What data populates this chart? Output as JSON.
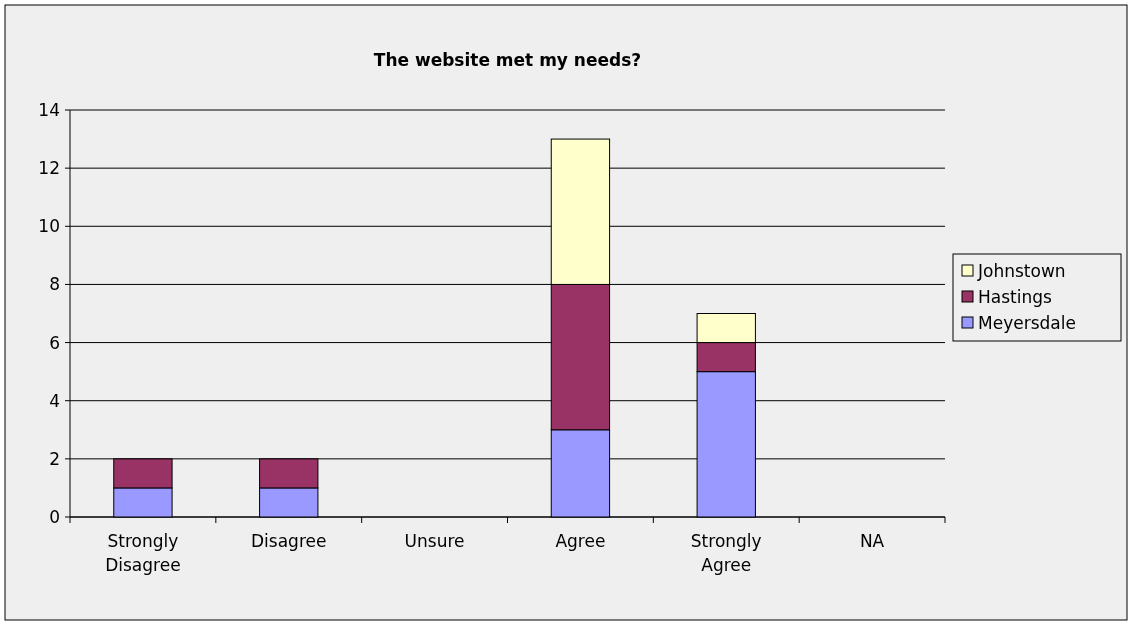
{
  "chart_data": {
    "type": "bar",
    "title": "The website met my needs?",
    "categories": [
      "Strongly Disagree",
      "Disagree",
      "Unsure",
      "Agree",
      "Strongly Agree",
      "NA"
    ],
    "stacked": true,
    "series": [
      {
        "name": "Meyersdale",
        "color": "#9999ff",
        "values": [
          1,
          1,
          0,
          3,
          5,
          0
        ]
      },
      {
        "name": "Hastings",
        "color": "#993366",
        "values": [
          1,
          1,
          0,
          5,
          1,
          0
        ]
      },
      {
        "name": "Johnstown",
        "color": "#ffffcc",
        "values": [
          0,
          0,
          0,
          5,
          1,
          0
        ]
      }
    ],
    "ylim": [
      0,
      14
    ],
    "yticks": [
      0,
      2,
      4,
      6,
      8,
      10,
      12,
      14
    ],
    "grid": "y",
    "legend": "right"
  }
}
